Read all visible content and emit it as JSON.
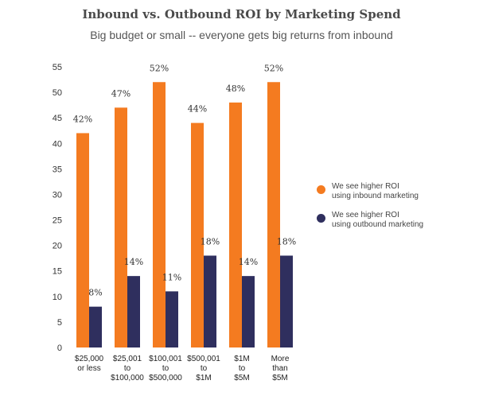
{
  "chart_data": {
    "type": "bar",
    "title": "Inbound vs. Outbound ROI by Marketing Spend",
    "subtitle": "Big budget or small -- everyone gets big returns from inbound",
    "categories": [
      [
        "$25,000",
        "or less"
      ],
      [
        "$25,001",
        "to",
        "$100,000"
      ],
      [
        "$100,001",
        "to",
        "$500,000"
      ],
      [
        "$500,001",
        "to",
        "$1M"
      ],
      [
        "$1M",
        "to",
        "$5M"
      ],
      [
        "More",
        "than",
        "$5M"
      ]
    ],
    "series": [
      {
        "name": [
          "We see higher ROI",
          "using inbound marketing"
        ],
        "color": "#f47b20",
        "values": [
          42,
          47,
          52,
          44,
          48,
          52
        ],
        "labels": [
          "42%",
          "47%",
          "52%",
          "44%",
          "48%",
          "52%"
        ]
      },
      {
        "name": [
          "We see higher ROI",
          "using outbound marketing"
        ],
        "color": "#2f2f5e",
        "values": [
          8,
          14,
          11,
          18,
          14,
          18
        ],
        "labels": [
          "8%",
          "14%",
          "11%",
          "18%",
          "14%",
          "18%"
        ]
      }
    ],
    "yticks": [
      "0",
      "5",
      "10",
      "15",
      "20",
      "25",
      "30",
      "35",
      "40",
      "45",
      "50",
      "55"
    ],
    "ylim": [
      0,
      55
    ],
    "grid": false,
    "legend_position": "right"
  }
}
